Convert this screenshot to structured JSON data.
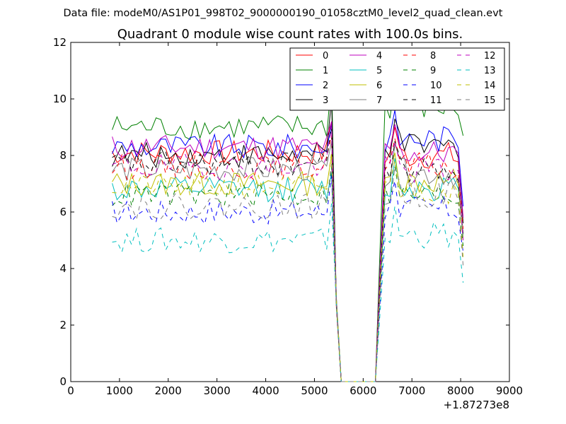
{
  "header": {
    "data_file": "Data file: modeM0/AS1P01_998T02_9000000190_01058cztM0_level2_quad_clean.evt"
  },
  "chart_data": {
    "type": "line",
    "title": "Quadrant 0 module wise count rates with 100.0s bins.",
    "xlabel": "",
    "ylabel": "",
    "xlim": [
      0,
      9000
    ],
    "ylim": [
      0,
      12
    ],
    "xticks": [
      0,
      1000,
      2000,
      3000,
      4000,
      5000,
      6000,
      7000,
      8000,
      9000
    ],
    "xtick_labels": [
      "0",
      "1000",
      "2000",
      "3000",
      "4000",
      "5000",
      "6000",
      "7000",
      "8000",
      "9000"
    ],
    "yticks": [
      0,
      2,
      4,
      6,
      8,
      10,
      12
    ],
    "ytick_labels": [
      "0",
      "2",
      "4",
      "6",
      "8",
      "10",
      "12"
    ],
    "x_offset_label": "+1.87273e8",
    "legend_position": "top-right",
    "legend_columns": 4,
    "grid": false,
    "segments": [
      {
        "x_start": 850,
        "x_step": 100,
        "n": 47
      },
      {
        "x_start": 5550,
        "x_step": 100,
        "n": 3
      },
      {
        "x_start": 5850,
        "x_step": 100,
        "n": 5
      },
      {
        "x_start": 6450,
        "x_step": 100,
        "n": 17
      }
    ],
    "series": [
      {
        "name": "0",
        "color": "#ff0000",
        "dash": "solid",
        "base1": 8.1,
        "peak1": 9.2,
        "base2": 8.0,
        "last": 5.8
      },
      {
        "name": "1",
        "color": "#008000",
        "dash": "solid",
        "base1": 9.0,
        "peak1": 10.7,
        "base2": 9.7,
        "last": 8.7
      },
      {
        "name": "2",
        "color": "#0000ff",
        "dash": "solid",
        "base1": 8.3,
        "peak1": 9.1,
        "base2": 8.6,
        "last": 6.2
      },
      {
        "name": "3",
        "color": "#000000",
        "dash": "solid",
        "base1": 8.0,
        "peak1": 10.0,
        "base2": 8.3,
        "last": 5.6
      },
      {
        "name": "4",
        "color": "#bf00bf",
        "dash": "solid",
        "base1": 8.3,
        "peak1": 9.2,
        "base2": 8.1,
        "last": 5.8
      },
      {
        "name": "5",
        "color": "#00bfbf",
        "dash": "solid",
        "base1": 6.8,
        "peak1": 7.4,
        "base2": 6.9,
        "last": 5.2
      },
      {
        "name": "6",
        "color": "#bfbf00",
        "dash": "solid",
        "base1": 7.0,
        "peak1": 8.0,
        "base2": 7.1,
        "last": 5.1
      },
      {
        "name": "7",
        "color": "#7f7f7f",
        "dash": "solid",
        "base1": 7.5,
        "peak1": 8.5,
        "base2": 7.4,
        "last": 5.0
      },
      {
        "name": "8",
        "color": "#ff0000",
        "dash": "dashed",
        "base1": 7.6,
        "peak1": 8.7,
        "base2": 7.6,
        "last": 5.4
      },
      {
        "name": "9",
        "color": "#008000",
        "dash": "dashed",
        "base1": 6.6,
        "peak1": 7.6,
        "base2": 6.6,
        "last": 4.8
      },
      {
        "name": "10",
        "color": "#0000ff",
        "dash": "dashed",
        "base1": 6.0,
        "peak1": 7.3,
        "base2": 6.1,
        "last": 4.6
      },
      {
        "name": "11",
        "color": "#000000",
        "dash": "dashed",
        "base1": 7.7,
        "peak1": 9.0,
        "base2": 7.5,
        "last": 5.2
      },
      {
        "name": "12",
        "color": "#bf00bf",
        "dash": "dashed",
        "base1": 7.6,
        "peak1": 9.0,
        "base2": 7.5,
        "last": 5.0
      },
      {
        "name": "13",
        "color": "#00bfbf",
        "dash": "dashed",
        "base1": 5.0,
        "peak1": 6.3,
        "base2": 5.2,
        "last": 3.5
      },
      {
        "name": "14",
        "color": "#bfbf00",
        "dash": "dashed",
        "base1": 6.9,
        "peak1": 8.1,
        "base2": 6.8,
        "last": 4.4
      },
      {
        "name": "15",
        "color": "#7f7f7f",
        "dash": "dashed",
        "base1": 6.2,
        "peak1": 7.7,
        "base2": 6.6,
        "last": 4.1
      }
    ]
  }
}
